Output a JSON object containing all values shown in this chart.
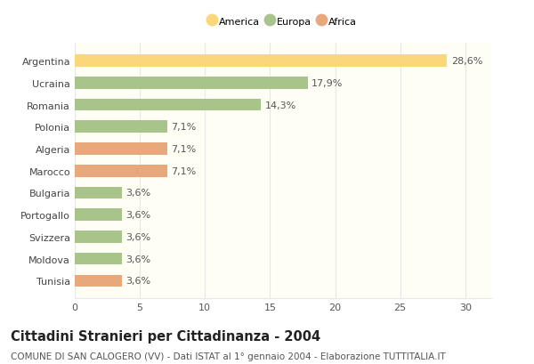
{
  "categories": [
    "Tunisia",
    "Moldova",
    "Svizzera",
    "Portogallo",
    "Bulgaria",
    "Marocco",
    "Algeria",
    "Polonia",
    "Romania",
    "Ucraina",
    "Argentina"
  ],
  "values": [
    3.6,
    3.6,
    3.6,
    3.6,
    3.6,
    7.1,
    7.1,
    7.1,
    14.3,
    17.9,
    28.6
  ],
  "labels": [
    "3,6%",
    "3,6%",
    "3,6%",
    "3,6%",
    "3,6%",
    "7,1%",
    "7,1%",
    "7,1%",
    "14,3%",
    "17,9%",
    "28,6%"
  ],
  "colors": [
    "#e8a87c",
    "#a8c48a",
    "#a8c48a",
    "#a8c48a",
    "#a8c48a",
    "#e8a87c",
    "#e8a87c",
    "#a8c48a",
    "#a8c48a",
    "#a8c48a",
    "#f9d77a"
  ],
  "legend_labels": [
    "America",
    "Europa",
    "Africa"
  ],
  "legend_colors": [
    "#f9d77a",
    "#a8c48a",
    "#e8a87c"
  ],
  "title": "Cittadini Stranieri per Cittadinanza - 2004",
  "subtitle": "COMUNE DI SAN CALOGERO (VV) - Dati ISTAT al 1° gennaio 2004 - Elaborazione TUTTITALIA.IT",
  "xlim": [
    0,
    32
  ],
  "xticks": [
    0,
    5,
    10,
    15,
    20,
    25,
    30
  ],
  "bg_color": "#ffffff",
  "plot_bg_color": "#fefef5",
  "grid_color": "#e8e8e8",
  "bar_height": 0.55,
  "label_fontsize": 8,
  "tick_fontsize": 8,
  "title_fontsize": 10.5,
  "subtitle_fontsize": 7.5
}
